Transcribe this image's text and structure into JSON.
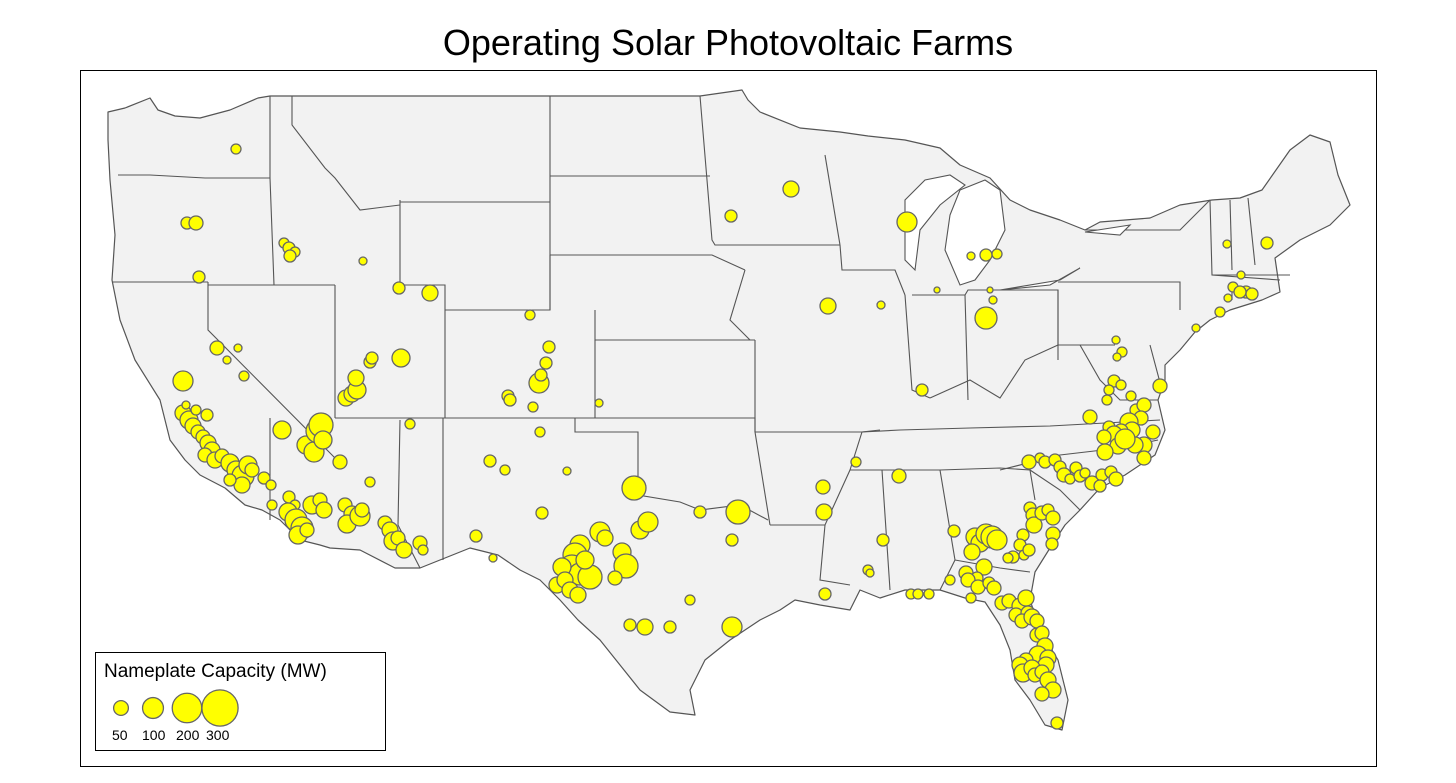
{
  "title": "Operating Solar Photovoltaic Farms",
  "legend": {
    "title": "Nameplate Capacity (MW)",
    "items": [
      {
        "label": "50",
        "mw": 50
      },
      {
        "label": "100",
        "mw": 100
      },
      {
        "label": "200",
        "mw": 200
      },
      {
        "label": "300",
        "mw": 300
      }
    ]
  },
  "colors": {
    "land": "#f2f2f2",
    "border": "#555555",
    "marker_fill": "#ffff00",
    "marker_stroke": "#666666"
  }
}
